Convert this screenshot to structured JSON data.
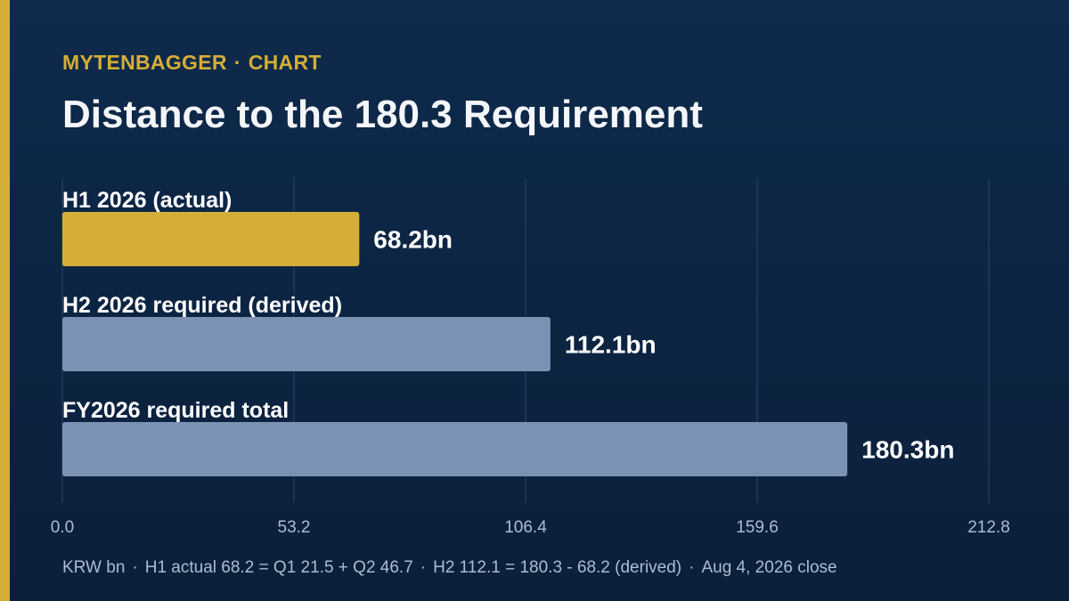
{
  "header": {
    "brand": "MYTENBAGGER",
    "separator": "·",
    "section": "CHART",
    "title": "Distance to the 180.3 Requirement"
  },
  "chart_data": {
    "type": "bar",
    "orientation": "horizontal",
    "title": "Distance to the 180.3 Requirement",
    "categories": [
      "H1 2026 (actual)",
      "H2 2026 required (derived)",
      "FY2026 required total"
    ],
    "values": [
      68.2,
      112.1,
      180.3
    ],
    "value_labels": [
      "68.2bn",
      "112.1bn",
      "180.3bn"
    ],
    "bar_colors": [
      "#d4ae36",
      "#7b92b5",
      "#7b92b5"
    ],
    "x_ticks": [
      "0.0",
      "53.2",
      "106.4",
      "159.6",
      "212.8"
    ],
    "xlim": [
      0,
      212.8
    ],
    "grid": true
  },
  "footnote": {
    "parts": [
      "KRW bn",
      "H1 actual 68.2 = Q1 21.5 + Q2 46.7",
      "H2 112.1 = 180.3 - 68.2 (derived)",
      "Aug 4, 2026 close"
    ],
    "separator": "·"
  },
  "colors": {
    "accent": "#d4ae36",
    "bar_secondary": "#7b92b5",
    "background": "#0b1f3a"
  }
}
